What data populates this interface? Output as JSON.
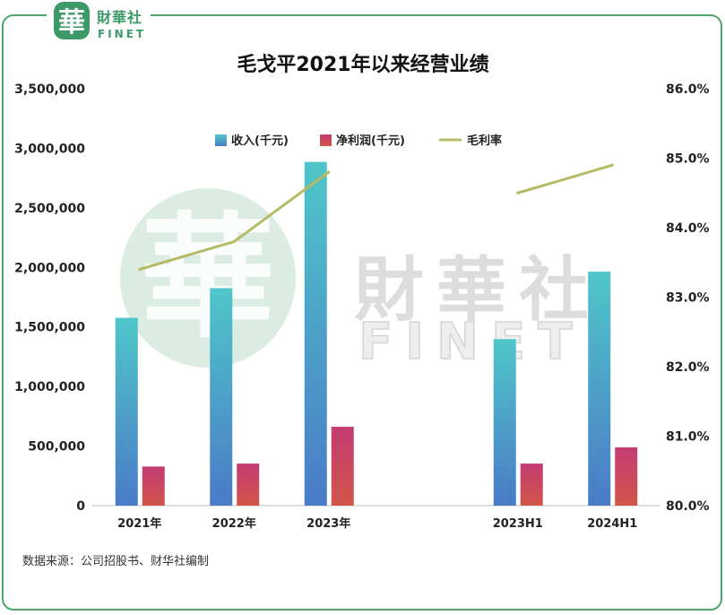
{
  "logo": {
    "mark": "華",
    "name": "財華社",
    "latin": "FINET"
  },
  "watermark": {
    "mark": "華",
    "name": "財華社",
    "latin": "FINET"
  },
  "colors": {
    "border": "#4ea66b",
    "brand": "#3d9a68",
    "watermark_mark": "#cfe6da",
    "axis_line": "#bfbfbf"
  },
  "source_note": "数据来源：公司招股书、财华社编制",
  "chart_data": {
    "type": "bar",
    "title": "毛戈平2021年以来经营业绩",
    "categories": [
      "2021年",
      "2022年",
      "2023年",
      "",
      "2023H1",
      "2024H1"
    ],
    "series": [
      {
        "name": "收入(千元)",
        "type": "bar",
        "axis": "left",
        "values": [
          1577000,
          1826000,
          2886000,
          null,
          1398000,
          1965000
        ],
        "color_top": "#4fc6c9",
        "color_bottom": "#4a7bc8"
      },
      {
        "name": "净利润(千元)",
        "type": "bar",
        "axis": "left",
        "values": [
          328000,
          353000,
          662000,
          null,
          353000,
          489000
        ],
        "color_top": "#c23c72",
        "color_bottom": "#d2554a"
      },
      {
        "name": "毛利率",
        "type": "line",
        "axis": "right",
        "values": [
          83.4,
          83.8,
          84.8,
          null,
          84.5,
          84.9
        ],
        "color": "#b5bb67"
      }
    ],
    "y_left": {
      "min": 0,
      "max": 3500000,
      "ticks": [
        0,
        500000,
        1000000,
        1500000,
        2000000,
        2500000,
        3000000,
        3500000
      ],
      "tick_labels": [
        "0",
        "500,000",
        "1,000,000",
        "1,500,000",
        "2,000,000",
        "2,500,000",
        "3,000,000",
        "3,500,000"
      ]
    },
    "y_right": {
      "min": 80,
      "max": 86,
      "ticks": [
        80,
        81,
        82,
        83,
        84,
        85,
        86
      ],
      "tick_labels": [
        "80.0%",
        "81.0%",
        "82.0%",
        "83.0%",
        "84.0%",
        "85.0%",
        "86.0%"
      ]
    },
    "grid": false,
    "legend": "top"
  }
}
